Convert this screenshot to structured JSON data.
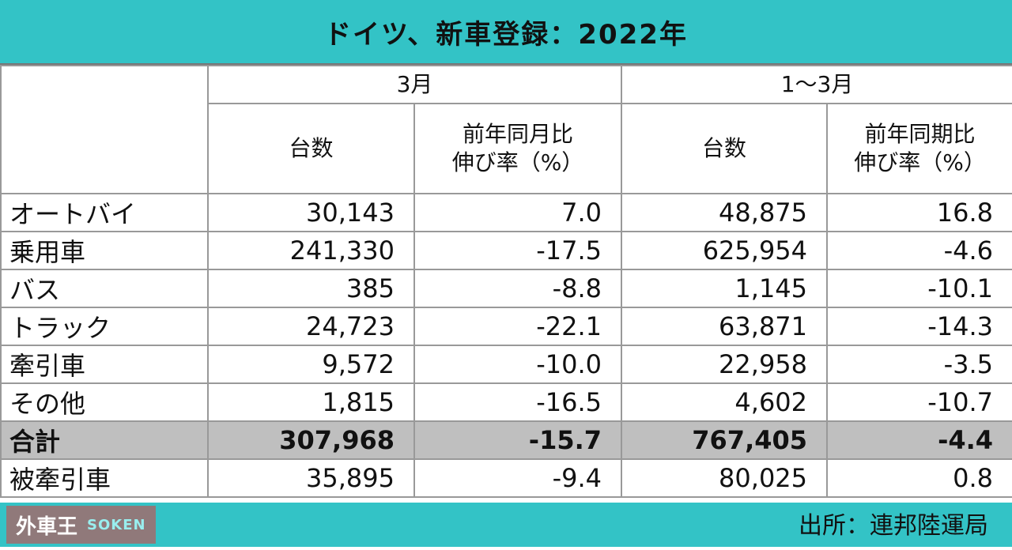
{
  "title": "ドイツ、新車登録：2022年",
  "headers": {
    "march": "3月",
    "jan_mar": "1～3月",
    "units": "台数",
    "yoy_month": "前年同月比\n伸び率（%）",
    "yoy_period": "前年同期比\n伸び率（%）"
  },
  "rows": [
    {
      "label": "オートバイ",
      "m_units": "30,143",
      "m_yoy": "7.0",
      "q_units": "48,875",
      "q_yoy": "16.8"
    },
    {
      "label": "乗用車",
      "m_units": "241,330",
      "m_yoy": "-17.5",
      "q_units": "625,954",
      "q_yoy": "-4.6"
    },
    {
      "label": "バス",
      "m_units": "385",
      "m_yoy": "-8.8",
      "q_units": "1,145",
      "q_yoy": "-10.1"
    },
    {
      "label": "トラック",
      "m_units": "24,723",
      "m_yoy": "-22.1",
      "q_units": "63,871",
      "q_yoy": "-14.3"
    },
    {
      "label": "牽引車",
      "m_units": "9,572",
      "m_yoy": "-10.0",
      "q_units": "22,958",
      "q_yoy": "-3.5"
    },
    {
      "label": "その他",
      "m_units": "1,815",
      "m_yoy": "-16.5",
      "q_units": "4,602",
      "q_yoy": "-10.7"
    },
    {
      "label": "合計",
      "m_units": "307,968",
      "m_yoy": "-15.7",
      "q_units": "767,405",
      "q_yoy": "-4.4"
    },
    {
      "label": "被牽引車",
      "m_units": "35,895",
      "m_yoy": "-9.4",
      "q_units": "80,025",
      "q_yoy": "0.8"
    }
  ],
  "source": "出所：連邦陸運局",
  "watermark": {
    "top": "外車王",
    "bottom": "SOKEN"
  }
}
